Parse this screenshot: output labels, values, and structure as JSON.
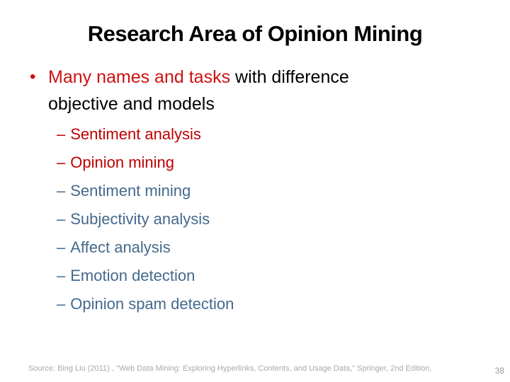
{
  "colors": {
    "background": "#FFFFFF",
    "title": "#000000",
    "red": "#C00000",
    "red_bright": "#CC1111",
    "blue": "#44698C",
    "gray_footer": "#A9A9A9",
    "gray_page": "#9A9A9A"
  },
  "slide": {
    "title": "Research Area of Opinion Mining",
    "bullet_glyph": "•",
    "dash_glyph": "–",
    "bullet": {
      "line1_red": "Many names and tasks",
      "line1_black": " with difference",
      "line2": "objective and models"
    },
    "sub_items": [
      {
        "label": "Sentiment analysis",
        "color": "red"
      },
      {
        "label": "Opinion mining",
        "color": "red"
      },
      {
        "label": "Sentiment mining",
        "color": "blue"
      },
      {
        "label": "Subjectivity analysis",
        "color": "blue"
      },
      {
        "label": "Affect analysis",
        "color": "blue"
      },
      {
        "label": "Emotion detection",
        "color": "blue"
      },
      {
        "label": "Opinion spam detection",
        "color": "blue"
      }
    ],
    "footer": {
      "source": "Source: Bing Liu (2011) , \"Web Data Mining: Exploring Hyperlinks, Contents, and Usage Data,\" Springer, 2nd Edition,",
      "page_number": "38"
    }
  }
}
